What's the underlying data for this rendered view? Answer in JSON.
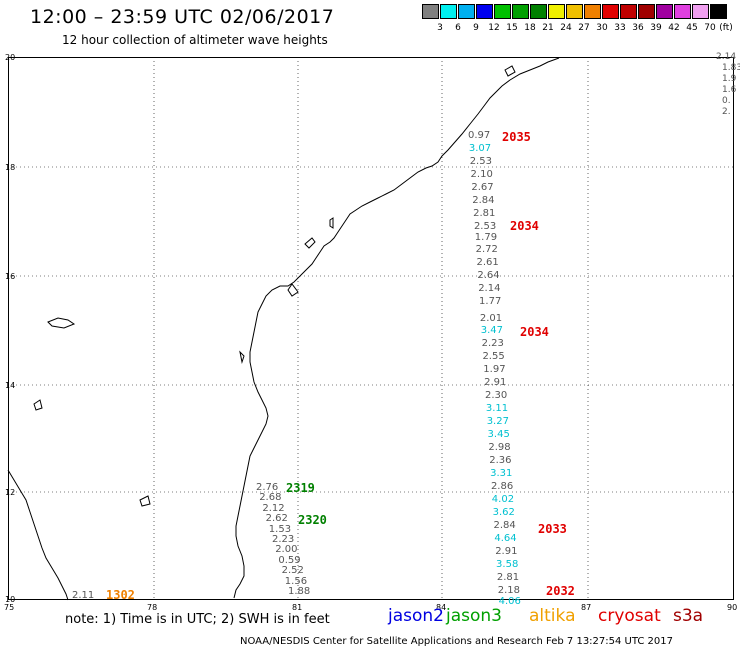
{
  "header": {
    "title": "12:00 – 23:59 UTC 02/06/2017",
    "subtitle": "12 hour collection of altimeter wave heights"
  },
  "scale": {
    "unit": "(ft)",
    "colors": [
      "#808080",
      "#00f0f0",
      "#00b0f0",
      "#0000f0",
      "#00c000",
      "#00a000",
      "#008000",
      "#f0f000",
      "#f0c000",
      "#f08000",
      "#e00000",
      "#c00000",
      "#a00000",
      "#a000a0",
      "#e040e0",
      "#f0a0f0",
      "#000000"
    ],
    "labels": [
      "3",
      "6",
      "9",
      "12",
      "15",
      "18",
      "21",
      "24",
      "27",
      "30",
      "33",
      "36",
      "39",
      "42",
      "45",
      "70"
    ]
  },
  "axes": {
    "x_ticks": [
      "75",
      "78",
      "81",
      "84",
      "87",
      "90"
    ],
    "y_ticks": [
      "20",
      "18",
      "16",
      "14",
      "12",
      "10"
    ]
  },
  "passes": [
    {
      "label": "2035",
      "color": "#e00000"
    },
    {
      "label": "2034",
      "color": "#e00000"
    },
    {
      "label": "2034",
      "color": "#e00000"
    },
    {
      "label": "2033",
      "color": "#e00000"
    },
    {
      "label": "2032",
      "color": "#e00000"
    },
    {
      "label": "2319",
      "color": "#008000"
    },
    {
      "label": "2320",
      "color": "#008000"
    },
    {
      "label": "1302",
      "color": "#f08000"
    }
  ],
  "track_east": [
    {
      "v": "0.97",
      "c": "#555"
    },
    {
      "v": "3.07",
      "c": "#00c0d0"
    },
    {
      "v": "2.53",
      "c": "#555"
    },
    {
      "v": "2.10",
      "c": "#555"
    },
    {
      "v": "2.67",
      "c": "#555"
    },
    {
      "v": "2.84",
      "c": "#555"
    },
    {
      "v": "2.81",
      "c": "#555"
    },
    {
      "v": "2.53",
      "c": "#555"
    },
    {
      "v": "1.79",
      "c": "#555"
    },
    {
      "v": "2.72",
      "c": "#555"
    },
    {
      "v": "2.61",
      "c": "#555"
    },
    {
      "v": "2.64",
      "c": "#555"
    },
    {
      "v": "2.14",
      "c": "#555"
    },
    {
      "v": "1.77",
      "c": "#555"
    },
    {
      "v": "2.01",
      "c": "#555"
    },
    {
      "v": "3.47",
      "c": "#00c0d0"
    },
    {
      "v": "2.23",
      "c": "#555"
    },
    {
      "v": "2.55",
      "c": "#555"
    },
    {
      "v": "1.97",
      "c": "#555"
    },
    {
      "v": "2.91",
      "c": "#555"
    },
    {
      "v": "2.30",
      "c": "#555"
    },
    {
      "v": "3.11",
      "c": "#00c0d0"
    },
    {
      "v": "3.27",
      "c": "#00c0d0"
    },
    {
      "v": "3.45",
      "c": "#00c0d0"
    },
    {
      "v": "2.98",
      "c": "#555"
    },
    {
      "v": "2.36",
      "c": "#555"
    },
    {
      "v": "3.31",
      "c": "#00c0d0"
    },
    {
      "v": "2.86",
      "c": "#555"
    },
    {
      "v": "4.02",
      "c": "#00c0d0"
    },
    {
      "v": "3.62",
      "c": "#00c0d0"
    },
    {
      "v": "2.84",
      "c": "#555"
    },
    {
      "v": "4.64",
      "c": "#00c0d0"
    },
    {
      "v": "2.91",
      "c": "#555"
    },
    {
      "v": "3.58",
      "c": "#00c0d0"
    },
    {
      "v": "2.81",
      "c": "#555"
    },
    {
      "v": "2.18",
      "c": "#555"
    },
    {
      "v": "4.06",
      "c": "#00c0d0"
    }
  ],
  "track_west": [
    "2.76",
    "2.68",
    "2.12",
    "2.62",
    "1.53",
    "2.23",
    "2.00",
    "0.59",
    "2.52",
    "1.56",
    "1.88"
  ],
  "track_west_extra": "2.11",
  "right_edge": [
    "2.14",
    "1.83",
    "1.9",
    "1.6",
    "0.",
    "2."
  ],
  "footer": {
    "note": "note: 1) Time is in UTC; 2) SWH is in feet",
    "satellites": [
      {
        "name": "jason2",
        "color": "#0000e0"
      },
      {
        "name": "jason3",
        "color": "#00a000"
      },
      {
        "name": "altika",
        "color": "#f0a000"
      },
      {
        "name": "cryosat",
        "color": "#e00000"
      },
      {
        "name": "s3a",
        "color": "#a00000"
      }
    ],
    "credit": "NOAA/NESDIS Center for Satellite Applications and Research    Feb  7 13:27:54 UTC 2017"
  }
}
